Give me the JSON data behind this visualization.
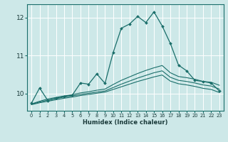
{
  "xlabel": "Humidex (Indice chaleur)",
  "xlim": [
    -0.5,
    23.5
  ],
  "ylim": [
    9.55,
    12.35
  ],
  "yticks": [
    10,
    11,
    12
  ],
  "xticks": [
    0,
    1,
    2,
    3,
    4,
    5,
    6,
    7,
    8,
    9,
    10,
    11,
    12,
    13,
    14,
    15,
    16,
    17,
    18,
    19,
    20,
    21,
    22,
    23
  ],
  "bg_color": "#cde8e8",
  "grid_color": "#b0d8d8",
  "line_color": "#1a6e6a",
  "line1_y": [
    9.75,
    10.15,
    9.82,
    9.88,
    9.93,
    9.96,
    10.28,
    10.25,
    10.52,
    10.27,
    11.08,
    11.72,
    11.83,
    12.03,
    11.87,
    12.15,
    11.78,
    11.32,
    10.75,
    10.6,
    10.35,
    10.32,
    10.28,
    10.07
  ],
  "line2_y": [
    9.73,
    9.8,
    9.86,
    9.9,
    9.94,
    9.97,
    10.02,
    10.05,
    10.09,
    10.12,
    10.24,
    10.35,
    10.44,
    10.53,
    10.61,
    10.68,
    10.74,
    10.55,
    10.45,
    10.42,
    10.38,
    10.32,
    10.3,
    10.22
  ],
  "line3_y": [
    9.72,
    9.78,
    9.83,
    9.87,
    9.91,
    9.94,
    9.98,
    10.01,
    10.04,
    10.07,
    10.16,
    10.25,
    10.33,
    10.41,
    10.48,
    10.55,
    10.6,
    10.43,
    10.35,
    10.32,
    10.28,
    10.23,
    10.2,
    10.12
  ],
  "line4_y": [
    9.71,
    9.76,
    9.8,
    9.84,
    9.88,
    9.91,
    9.95,
    9.98,
    10.01,
    10.04,
    10.11,
    10.18,
    10.25,
    10.32,
    10.38,
    10.44,
    10.49,
    10.33,
    10.26,
    10.23,
    10.19,
    10.14,
    10.11,
    10.03
  ]
}
